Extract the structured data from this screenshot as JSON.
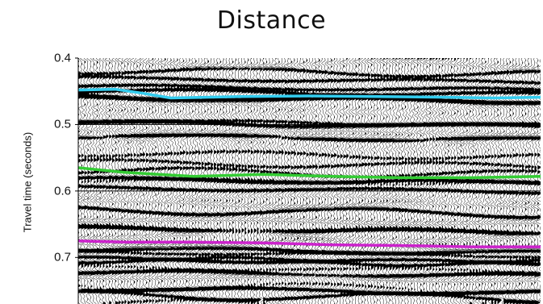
{
  "chart_data": {
    "type": "line",
    "title": "Distance",
    "xlabel": "",
    "ylabel": "Travel time (seconds)",
    "y_axis_inverted": true,
    "ylim": [
      0.4,
      0.77
    ],
    "yticks": [
      0.4,
      0.5,
      0.6,
      0.7
    ],
    "ytick_labels": [
      "0.4",
      "0.5",
      "0.6",
      "0.7"
    ],
    "xlim": [
      0,
      100
    ],
    "grid": "horizontal lines at 0.5, 0.6",
    "background": "seismic wiggle traces",
    "series": [
      {
        "color": "#33ccee",
        "x": [
          0,
          8,
          14,
          20,
          35,
          50,
          65,
          80,
          90,
          100
        ],
        "values": [
          0.448,
          0.447,
          0.453,
          0.46,
          0.458,
          0.457,
          0.458,
          0.459,
          0.46,
          0.459
        ]
      },
      {
        "color": "#33cc33",
        "x": [
          0,
          10,
          25,
          40,
          55,
          70,
          85,
          100
        ],
        "values": [
          0.565,
          0.572,
          0.578,
          0.575,
          0.578,
          0.58,
          0.58,
          0.578
        ]
      },
      {
        "color": "#cc22cc",
        "x": [
          0,
          10,
          25,
          40,
          55,
          70,
          85,
          100
        ],
        "values": [
          0.675,
          0.677,
          0.677,
          0.678,
          0.681,
          0.682,
          0.684,
          0.684
        ]
      }
    ]
  }
}
